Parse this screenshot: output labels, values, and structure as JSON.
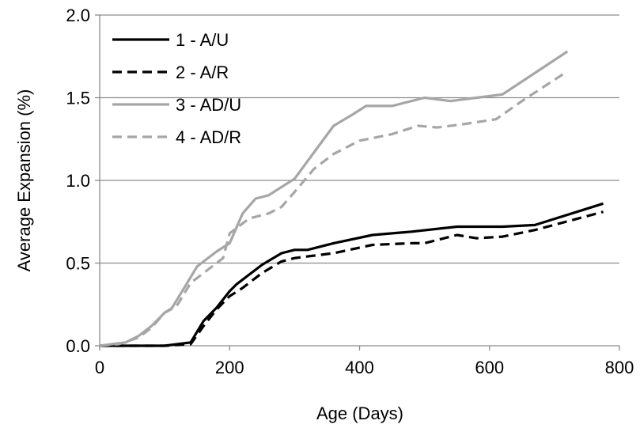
{
  "chart_data": {
    "type": "line",
    "xlabel": "Age (Days)",
    "ylabel": "Average Expansion (%)",
    "xlim": [
      0,
      800
    ],
    "ylim": [
      0,
      2.0
    ],
    "x_ticks": [
      0,
      200,
      400,
      600,
      800
    ],
    "x_tick_labels": [
      "0",
      "200",
      "400",
      "600",
      "800"
    ],
    "y_ticks": [
      0,
      0.5,
      1.0,
      1.5,
      2.0
    ],
    "y_tick_labels": [
      "0.0",
      "0.5",
      "1.0",
      "1.5",
      "2.0"
    ],
    "grid": "horizontal",
    "legend_position": "top-left",
    "series": [
      {
        "name": "1 - A/U",
        "color": "#000000",
        "dash": "solid",
        "points": [
          [
            0,
            0
          ],
          [
            30,
            0
          ],
          [
            60,
            0
          ],
          [
            100,
            0
          ],
          [
            140,
            0.02
          ],
          [
            160,
            0.15
          ],
          [
            180,
            0.23
          ],
          [
            200,
            0.33
          ],
          [
            210,
            0.37
          ],
          [
            230,
            0.43
          ],
          [
            250,
            0.49
          ],
          [
            280,
            0.56
          ],
          [
            300,
            0.58
          ],
          [
            320,
            0.58
          ],
          [
            360,
            0.62
          ],
          [
            420,
            0.67
          ],
          [
            480,
            0.69
          ],
          [
            550,
            0.72
          ],
          [
            620,
            0.72
          ],
          [
            670,
            0.73
          ],
          [
            775,
            0.86
          ]
        ]
      },
      {
        "name": "2 - A/R",
        "color": "#000000",
        "dash": "dashed",
        "points": [
          [
            0,
            0
          ],
          [
            30,
            0
          ],
          [
            60,
            0
          ],
          [
            100,
            0
          ],
          [
            140,
            0.01
          ],
          [
            160,
            0.12
          ],
          [
            180,
            0.22
          ],
          [
            200,
            0.3
          ],
          [
            220,
            0.35
          ],
          [
            250,
            0.44
          ],
          [
            280,
            0.51
          ],
          [
            300,
            0.53
          ],
          [
            320,
            0.54
          ],
          [
            360,
            0.56
          ],
          [
            420,
            0.61
          ],
          [
            480,
            0.62
          ],
          [
            500,
            0.62
          ],
          [
            550,
            0.67
          ],
          [
            580,
            0.65
          ],
          [
            620,
            0.66
          ],
          [
            670,
            0.7
          ],
          [
            775,
            0.81
          ]
        ]
      },
      {
        "name": "3 - AD/U",
        "color": "#a6a6a6",
        "dash": "solid",
        "points": [
          [
            0,
            0
          ],
          [
            40,
            0.02
          ],
          [
            60,
            0.06
          ],
          [
            80,
            0.12
          ],
          [
            100,
            0.2
          ],
          [
            110,
            0.22
          ],
          [
            130,
            0.35
          ],
          [
            150,
            0.48
          ],
          [
            180,
            0.57
          ],
          [
            200,
            0.62
          ],
          [
            220,
            0.8
          ],
          [
            240,
            0.89
          ],
          [
            260,
            0.91
          ],
          [
            300,
            1.01
          ],
          [
            330,
            1.17
          ],
          [
            360,
            1.33
          ],
          [
            390,
            1.4
          ],
          [
            410,
            1.45
          ],
          [
            450,
            1.45
          ],
          [
            500,
            1.5
          ],
          [
            540,
            1.48
          ],
          [
            580,
            1.5
          ],
          [
            620,
            1.52
          ],
          [
            720,
            1.78
          ]
        ]
      },
      {
        "name": "4 - AD/R",
        "color": "#a6a6a6",
        "dash": "dashed",
        "points": [
          [
            0,
            0
          ],
          [
            30,
            0.01
          ],
          [
            60,
            0.05
          ],
          [
            80,
            0.11
          ],
          [
            100,
            0.2
          ],
          [
            120,
            0.25
          ],
          [
            140,
            0.38
          ],
          [
            160,
            0.44
          ],
          [
            190,
            0.53
          ],
          [
            200,
            0.68
          ],
          [
            230,
            0.77
          ],
          [
            260,
            0.8
          ],
          [
            280,
            0.84
          ],
          [
            300,
            0.93
          ],
          [
            330,
            1.07
          ],
          [
            360,
            1.16
          ],
          [
            400,
            1.24
          ],
          [
            450,
            1.28
          ],
          [
            490,
            1.33
          ],
          [
            520,
            1.32
          ],
          [
            560,
            1.34
          ],
          [
            610,
            1.37
          ],
          [
            650,
            1.48
          ],
          [
            720,
            1.66
          ]
        ]
      }
    ]
  }
}
